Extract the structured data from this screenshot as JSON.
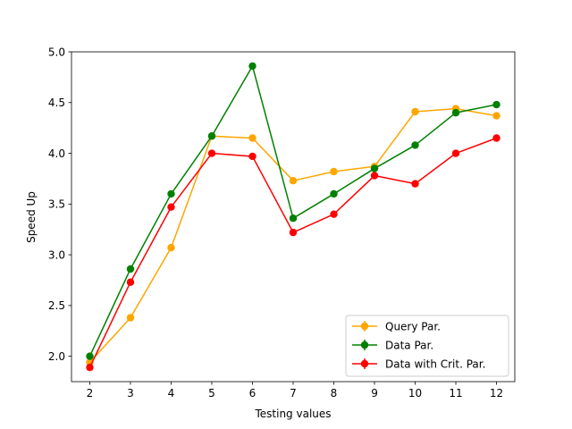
{
  "chart_data": {
    "type": "line",
    "xlabel": "Testing values",
    "ylabel": "Speed Up",
    "x": [
      2,
      3,
      4,
      5,
      6,
      7,
      8,
      9,
      10,
      11,
      12
    ],
    "xlim": [
      1.55,
      12.45
    ],
    "ylim": [
      1.75,
      5.0
    ],
    "x_ticks": [
      "2",
      "3",
      "4",
      "5",
      "6",
      "7",
      "8",
      "9",
      "10",
      "11",
      "12"
    ],
    "y_ticks": [
      "2.0",
      "2.5",
      "3.0",
      "3.5",
      "4.0",
      "4.5",
      "5.0"
    ],
    "grid": false,
    "legend_position": "lower right",
    "series": [
      {
        "name": "Query Par.",
        "color": "#ffa500",
        "values": [
          1.94,
          2.38,
          3.07,
          4.17,
          4.15,
          3.73,
          3.82,
          3.87,
          4.41,
          4.44,
          4.37
        ]
      },
      {
        "name": "Data Par.",
        "color": "#008000",
        "values": [
          2.0,
          2.86,
          3.6,
          4.17,
          4.86,
          3.36,
          3.6,
          3.85,
          4.08,
          4.4,
          4.48
        ]
      },
      {
        "name": "Data with Crit. Par.",
        "color": "#ff0000",
        "values": [
          1.89,
          2.73,
          3.47,
          4.0,
          3.97,
          3.22,
          3.4,
          3.78,
          3.7,
          4.0,
          4.15
        ]
      }
    ]
  }
}
